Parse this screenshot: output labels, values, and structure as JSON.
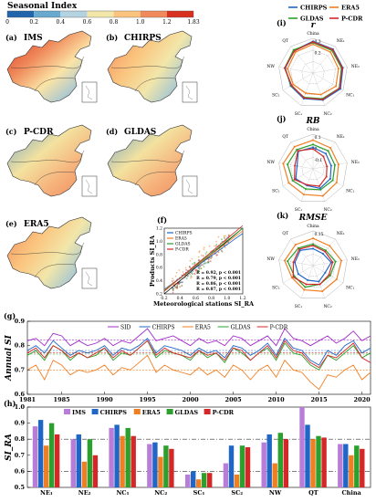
{
  "colorbar": {
    "title": "Seasonal Index",
    "ticks": [
      "0",
      "0.2",
      "0.4",
      "0.6",
      "0.8",
      "1.0",
      "1.2",
      "1.83"
    ],
    "colors": [
      "#2166ac",
      "#67a9cf",
      "#b4d3e1",
      "#f2e6a9",
      "#fbc47e",
      "#f08a5b",
      "#d7301f"
    ]
  },
  "maps": [
    {
      "panel": "(a)",
      "name": "IMS"
    },
    {
      "panel": "(b)",
      "name": "CHIRPS"
    },
    {
      "panel": "(c)",
      "name": "P-CDR"
    },
    {
      "panel": "(d)",
      "name": "GLDAS"
    },
    {
      "panel": "(e)",
      "name": "ERA5"
    }
  ],
  "radar_legend": [
    {
      "name": "CHIRPS",
      "color": "#1f66c7"
    },
    {
      "name": "ERA5",
      "color": "#f07f23"
    },
    {
      "name": "GLDAS",
      "color": "#2ca02c"
    },
    {
      "name": "P-CDR",
      "color": "#d62728"
    }
  ],
  "chart_data": [
    {
      "type": "scatter",
      "panel": "(f)",
      "xlabel": "Meteorological stations SI_RA",
      "ylabel": "Products SI_RA",
      "xlim": [
        0.2,
        1.2
      ],
      "ylim": [
        0.2,
        1.2
      ],
      "x_ticks": [
        "0.2",
        "0.4",
        "0.6",
        "0.8",
        "1.0",
        "1.2"
      ],
      "y_ticks": [
        "0.2",
        "0.4",
        "0.6",
        "0.8",
        "1.0",
        "1.2"
      ],
      "legend": [
        "CHIRPS",
        "ERA5",
        "GLDAS",
        "P-CDR"
      ],
      "series": [
        {
          "name": "CHIRPS",
          "color": "#1f66c7",
          "r": 0.92,
          "stat": "R = 0.92, p < 0.001"
        },
        {
          "name": "ERA5",
          "color": "#f07f23",
          "r": 0.79,
          "stat": "R = 0.79, p < 0.001"
        },
        {
          "name": "GLDAS",
          "color": "#2ca02c",
          "r": 0.86,
          "stat": "R = 0.86, p < 0.001"
        },
        {
          "name": "P-CDR",
          "color": "#d62728",
          "r": 0.87,
          "stat": "R = 0.87, p < 0.001"
        }
      ]
    },
    {
      "type": "radar",
      "panel": "(i)",
      "title": "r",
      "subtitle": "China",
      "axes": [
        "China",
        "NE1",
        "NE2",
        "NC1",
        "NC2",
        "SC1",
        "SC2",
        "NW",
        "QT"
      ],
      "axis_labels": [
        "",
        "NE₁",
        "NE₂",
        "NC₁",
        "NC₂",
        "SC₁",
        "SC₂",
        "NW",
        "QT"
      ],
      "ring_labels": [
        "0.3",
        "0.2"
      ],
      "range": [
        0,
        1
      ],
      "series": [
        {
          "name": "CHIRPS",
          "values": [
            0.9,
            0.88,
            0.85,
            0.9,
            0.8,
            0.75,
            0.7,
            0.78,
            0.82
          ]
        },
        {
          "name": "ERA5",
          "values": [
            0.8,
            0.75,
            0.7,
            0.72,
            0.6,
            0.55,
            0.6,
            0.7,
            0.75
          ]
        },
        {
          "name": "GLDAS",
          "values": [
            0.85,
            0.82,
            0.8,
            0.85,
            0.75,
            0.7,
            0.68,
            0.8,
            0.85
          ]
        },
        {
          "name": "P-CDR",
          "values": [
            0.88,
            0.86,
            0.83,
            0.86,
            0.78,
            0.72,
            0.66,
            0.8,
            0.8
          ]
        }
      ]
    },
    {
      "type": "radar",
      "panel": "(j)",
      "title": "RB",
      "subtitle": "China",
      "axes": [
        "China",
        "NE1",
        "NE2",
        "NC1",
        "NC2",
        "SC1",
        "SC2",
        "NW",
        "QT"
      ],
      "axis_labels": [
        "",
        "NE₁",
        "NE₂",
        "NC₁",
        "NC₂",
        "SC₁",
        "SC₂",
        "NW",
        "QT"
      ],
      "ring_labels": [
        "0.1",
        "0",
        "-0.1"
      ],
      "range": [
        -0.2,
        0.2
      ],
      "series": [
        {
          "name": "CHIRPS",
          "values": [
            0.02,
            0.0,
            -0.02,
            0.0,
            0.01,
            -0.03,
            0.0,
            -0.05,
            0.04
          ]
        },
        {
          "name": "ERA5",
          "values": [
            0.12,
            0.1,
            0.08,
            0.1,
            0.12,
            0.1,
            0.11,
            0.14,
            0.12
          ]
        },
        {
          "name": "GLDAS",
          "values": [
            0.06,
            0.05,
            0.03,
            0.04,
            0.03,
            0.02,
            0.05,
            0.08,
            0.07
          ]
        },
        {
          "name": "P-CDR",
          "values": [
            0.0,
            -0.05,
            -0.08,
            -0.06,
            -0.02,
            -0.04,
            0.02,
            -0.02,
            0.05
          ]
        }
      ]
    },
    {
      "type": "radar",
      "panel": "(k)",
      "title": "RMSE",
      "subtitle": "China",
      "axes": [
        "China",
        "NE1",
        "NE2",
        "NC1",
        "NC2",
        "SC1",
        "SC2",
        "NW",
        "QT"
      ],
      "axis_labels": [
        "",
        "NE₁",
        "NE₂",
        "NC₁",
        "NC₂",
        "SC₁",
        "SC₂",
        "NW",
        "QT"
      ],
      "ring_labels": [
        "0.15"
      ],
      "range": [
        0,
        0.2
      ],
      "series": [
        {
          "name": "CHIRPS",
          "values": [
            0.08,
            0.07,
            0.09,
            0.06,
            0.08,
            0.07,
            0.08,
            0.09,
            0.1
          ]
        },
        {
          "name": "ERA5",
          "values": [
            0.15,
            0.14,
            0.16,
            0.15,
            0.15,
            0.14,
            0.13,
            0.16,
            0.15
          ]
        },
        {
          "name": "GLDAS",
          "values": [
            0.11,
            0.1,
            0.12,
            0.1,
            0.1,
            0.12,
            0.11,
            0.14,
            0.12
          ]
        },
        {
          "name": "P-CDR",
          "values": [
            0.1,
            0.09,
            0.1,
            0.09,
            0.1,
            0.1,
            0.12,
            0.1,
            0.11
          ]
        }
      ]
    },
    {
      "type": "line",
      "panel": "(g)",
      "ylabel": "Annual SI",
      "ylim": [
        0.6,
        0.9
      ],
      "y_ticks": [
        "0.6",
        "0.7",
        "0.8",
        "0.9"
      ],
      "x_ticks": [
        "1981",
        "1985",
        "1990",
        "1995",
        "2000",
        "2005",
        "2010",
        "2015",
        "2020"
      ],
      "x": [
        1981,
        1982,
        1983,
        1984,
        1985,
        1986,
        1987,
        1988,
        1989,
        1990,
        1991,
        1992,
        1993,
        1994,
        1995,
        1996,
        1997,
        1998,
        1999,
        2000,
        2001,
        2002,
        2003,
        2004,
        2005,
        2006,
        2007,
        2008,
        2009,
        2010,
        2011,
        2012,
        2013,
        2014,
        2015,
        2016,
        2017,
        2018,
        2019,
        2020,
        2021
      ],
      "series": [
        {
          "name": "SID",
          "color": "#a02cc8",
          "values": [
            0.82,
            0.83,
            0.8,
            0.85,
            0.84,
            0.8,
            0.82,
            0.8,
            0.81,
            0.83,
            0.8,
            0.82,
            0.81,
            0.84,
            0.87,
            0.82,
            0.83,
            0.84,
            0.82,
            0.8,
            0.83,
            0.81,
            0.82,
            0.8,
            0.84,
            0.83,
            0.8,
            0.82,
            0.84,
            0.8,
            0.87,
            0.83,
            0.82,
            0.8,
            0.82,
            0.84,
            0.81,
            0.83,
            0.86,
            0.82,
            0.84
          ]
        },
        {
          "name": "CHIRPS",
          "color": "#1f66c7",
          "values": [
            0.78,
            0.8,
            0.77,
            0.82,
            0.79,
            0.76,
            0.78,
            0.77,
            0.78,
            0.8,
            0.76,
            0.79,
            0.78,
            0.8,
            0.83,
            0.77,
            0.8,
            0.79,
            0.78,
            0.76,
            0.79,
            0.77,
            0.78,
            0.75,
            0.8,
            0.79,
            0.76,
            0.78,
            0.81,
            0.76,
            0.83,
            0.79,
            0.78,
            0.74,
            0.72,
            0.78,
            0.76,
            0.8,
            0.82,
            0.77,
            0.79
          ]
        },
        {
          "name": "ERA5",
          "color": "#f07f23",
          "values": [
            0.7,
            0.72,
            0.66,
            0.74,
            0.72,
            0.68,
            0.7,
            0.69,
            0.7,
            0.72,
            0.68,
            0.71,
            0.7,
            0.73,
            0.76,
            0.69,
            0.72,
            0.7,
            0.69,
            0.68,
            0.71,
            0.68,
            0.7,
            0.67,
            0.72,
            0.7,
            0.66,
            0.7,
            0.72,
            0.67,
            0.74,
            0.7,
            0.69,
            0.65,
            0.62,
            0.68,
            0.67,
            0.7,
            0.72,
            0.66,
            0.69
          ]
        },
        {
          "name": "GLDAS",
          "color": "#2ca02c",
          "values": [
            0.76,
            0.78,
            0.74,
            0.8,
            0.78,
            0.74,
            0.77,
            0.75,
            0.76,
            0.79,
            0.74,
            0.77,
            0.76,
            0.79,
            0.82,
            0.75,
            0.78,
            0.77,
            0.76,
            0.74,
            0.78,
            0.75,
            0.77,
            0.73,
            0.79,
            0.77,
            0.74,
            0.77,
            0.79,
            0.74,
            0.81,
            0.77,
            0.76,
            0.72,
            0.7,
            0.76,
            0.74,
            0.77,
            0.8,
            0.75,
            0.77
          ]
        },
        {
          "name": "P-CDR",
          "color": "#d62728",
          "values": [
            0.77,
            0.79,
            0.75,
            0.8,
            0.78,
            0.75,
            0.77,
            0.75,
            0.77,
            0.79,
            0.75,
            0.78,
            0.76,
            0.79,
            0.82,
            0.76,
            0.79,
            0.77,
            0.76,
            0.75,
            0.78,
            0.76,
            0.77,
            0.74,
            0.79,
            0.78,
            0.74,
            0.77,
            0.8,
            0.75,
            0.82,
            0.78,
            0.77,
            0.73,
            0.71,
            0.76,
            0.75,
            0.78,
            0.81,
            0.75,
            0.73
          ]
        }
      ],
      "mean_lines": [
        {
          "name": "SID",
          "value": 0.823
        },
        {
          "name": "CHIRPS",
          "value": 0.78
        },
        {
          "name": "ERA5",
          "value": 0.7
        },
        {
          "name": "GLDAS",
          "value": 0.765
        },
        {
          "name": "P-CDR",
          "value": 0.77
        }
      ]
    },
    {
      "type": "bar",
      "panel": "(h)",
      "ylabel": "SI_RA",
      "ylim": [
        0.5,
        1.0
      ],
      "y_ticks": [
        "0.5",
        "0.6",
        "0.7",
        "0.8",
        "0.9",
        "1.0"
      ],
      "categories": [
        "NE1",
        "NE2",
        "NC1",
        "NC2",
        "SC1",
        "SC2",
        "NW",
        "QT",
        "China"
      ],
      "category_labels": [
        "NE₁",
        "NE₂",
        "NC₁",
        "NC₂",
        "SC₁",
        "SC₂",
        "NW",
        "QT",
        "China"
      ],
      "reference_lines": [
        0.8,
        0.6
      ],
      "series": [
        {
          "name": "IMS",
          "color": "#b77dd9",
          "values": [
            0.88,
            0.8,
            0.87,
            0.77,
            0.58,
            0.65,
            0.78,
            1.0,
            0.77
          ]
        },
        {
          "name": "CHIRPS",
          "color": "#1f66c7",
          "values": [
            0.92,
            0.83,
            0.89,
            0.78,
            0.6,
            0.76,
            0.83,
            0.89,
            0.77
          ]
        },
        {
          "name": "ERA5",
          "color": "#f07f23",
          "values": [
            0.76,
            0.66,
            0.82,
            0.69,
            0.55,
            0.58,
            0.65,
            0.8,
            0.7
          ]
        },
        {
          "name": "GLDAS",
          "color": "#2ca02c",
          "values": [
            0.9,
            0.8,
            0.87,
            0.76,
            0.59,
            0.76,
            0.84,
            0.82,
            0.76
          ]
        },
        {
          "name": "P-CDR",
          "color": "#d62728",
          "values": [
            0.83,
            0.7,
            0.82,
            0.74,
            0.59,
            0.75,
            0.8,
            0.81,
            0.74
          ]
        }
      ]
    }
  ]
}
